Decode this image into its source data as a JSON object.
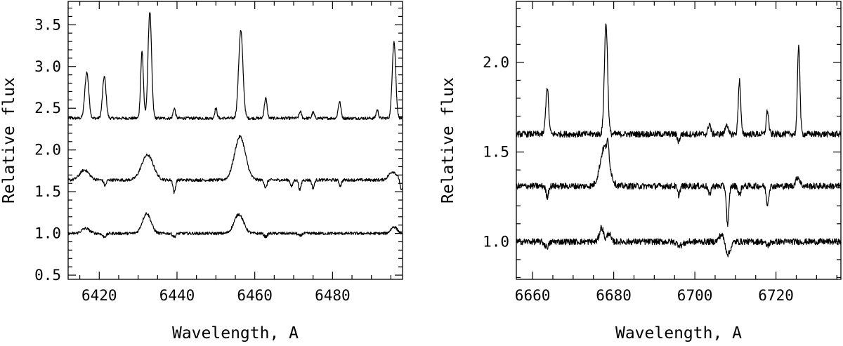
{
  "chart_data": [
    {
      "type": "line",
      "xlabel": "Wavelength, A",
      "ylabel": "Relative flux",
      "xlim": [
        6412,
        6498
      ],
      "ylim": [
        0.45,
        3.78
      ],
      "xticks": [
        6420,
        6440,
        6460,
        6480
      ],
      "yticks": [
        0.5,
        1.0,
        1.5,
        2.0,
        2.5,
        3.0,
        3.5
      ],
      "ytick_labels": [
        "0.5",
        "1.0",
        "1.5",
        "2.0",
        "2.5",
        "3.0",
        "3.5"
      ],
      "grid": false,
      "series": [
        {
          "baseline": 2.38,
          "features": [
            {
              "x": 6416.8,
              "amp": 0.55,
              "w": 0.5
            },
            {
              "x": 6421.3,
              "amp": 0.5,
              "w": 0.45
            },
            {
              "x": 6431.0,
              "amp": 0.8,
              "w": 0.35
            },
            {
              "x": 6433.0,
              "amp": 1.28,
              "w": 0.45
            },
            {
              "x": 6439.3,
              "amp": 0.12,
              "w": 0.3
            },
            {
              "x": 6450.0,
              "amp": 0.12,
              "w": 0.3
            },
            {
              "x": 6456.4,
              "amp": 1.05,
              "w": 0.55
            },
            {
              "x": 6462.8,
              "amp": 0.24,
              "w": 0.35
            },
            {
              "x": 6471.7,
              "amp": 0.08,
              "w": 0.3
            },
            {
              "x": 6475.0,
              "amp": 0.07,
              "w": 0.3
            },
            {
              "x": 6481.8,
              "amp": 0.2,
              "w": 0.35
            },
            {
              "x": 6491.5,
              "amp": 0.1,
              "w": 0.3
            },
            {
              "x": 6495.8,
              "amp": 0.92,
              "w": 0.45
            }
          ]
        },
        {
          "baseline": 1.64,
          "features": [
            {
              "x": 6416.2,
              "amp": 0.12,
              "w": 1.2
            },
            {
              "x": 6421.5,
              "amp": -0.07,
              "w": 0.3
            },
            {
              "x": 6432.4,
              "amp": 0.3,
              "w": 1.5
            },
            {
              "x": 6439.3,
              "amp": -0.15,
              "w": 0.3
            },
            {
              "x": 6456.2,
              "amp": 0.52,
              "w": 1.4
            },
            {
              "x": 6462.8,
              "amp": -0.1,
              "w": 0.3
            },
            {
              "x": 6469.5,
              "amp": -0.08,
              "w": 0.3
            },
            {
              "x": 6471.6,
              "amp": -0.12,
              "w": 0.3
            },
            {
              "x": 6475.0,
              "amp": -0.1,
              "w": 0.3
            },
            {
              "x": 6482.0,
              "amp": -0.07,
              "w": 0.3
            },
            {
              "x": 6495.5,
              "amp": 0.1,
              "w": 1.0
            },
            {
              "x": 6497.7,
              "amp": -0.14,
              "w": 0.3
            }
          ]
        },
        {
          "baseline": 1.0,
          "features": [
            {
              "x": 6416.5,
              "amp": 0.06,
              "w": 1.0
            },
            {
              "x": 6421.3,
              "amp": -0.04,
              "w": 0.5
            },
            {
              "x": 6432.2,
              "amp": 0.24,
              "w": 1.1
            },
            {
              "x": 6439.3,
              "amp": -0.04,
              "w": 0.4
            },
            {
              "x": 6455.9,
              "amp": 0.23,
              "w": 1.2
            },
            {
              "x": 6462.8,
              "amp": -0.04,
              "w": 0.4
            },
            {
              "x": 6471.6,
              "amp": -0.03,
              "w": 0.4
            },
            {
              "x": 6495.8,
              "amp": 0.08,
              "w": 0.8
            }
          ]
        }
      ]
    },
    {
      "type": "line",
      "xlabel": "Wavelength, A",
      "ylabel": "Relative flux",
      "xlim": [
        6656,
        6736
      ],
      "ylim": [
        0.79,
        2.34
      ],
      "xticks": [
        6660,
        6680,
        6700,
        6720
      ],
      "yticks": [
        1.0,
        1.5,
        2.0
      ],
      "ytick_labels": [
        "1.0",
        "1.5",
        "2.0"
      ],
      "grid": false,
      "series": [
        {
          "baseline": 1.6,
          "features": [
            {
              "x": 6663.6,
              "amp": 0.26,
              "w": 0.35
            },
            {
              "x": 6678.1,
              "amp": 0.62,
              "w": 0.4
            },
            {
              "x": 6696.0,
              "amp": -0.04,
              "w": 0.3
            },
            {
              "x": 6703.6,
              "amp": 0.06,
              "w": 0.3
            },
            {
              "x": 6707.8,
              "amp": 0.06,
              "w": 0.3
            },
            {
              "x": 6711.0,
              "amp": 0.3,
              "w": 0.3
            },
            {
              "x": 6717.9,
              "amp": 0.13,
              "w": 0.3
            },
            {
              "x": 6725.6,
              "amp": 0.5,
              "w": 0.3
            }
          ]
        },
        {
          "baseline": 1.31,
          "features": [
            {
              "x": 6663.6,
              "amp": -0.06,
              "w": 0.3
            },
            {
              "x": 6677.8,
              "amp": 0.22,
              "w": 1.1
            },
            {
              "x": 6678.6,
              "amp": 0.08,
              "w": 0.25
            },
            {
              "x": 6696.0,
              "amp": -0.05,
              "w": 0.3
            },
            {
              "x": 6703.6,
              "amp": -0.05,
              "w": 0.3
            },
            {
              "x": 6708.1,
              "amp": -0.22,
              "w": 0.3
            },
            {
              "x": 6711.0,
              "amp": -0.05,
              "w": 0.3
            },
            {
              "x": 6717.9,
              "amp": -0.1,
              "w": 0.3
            },
            {
              "x": 6725.4,
              "amp": 0.05,
              "w": 0.5
            }
          ]
        },
        {
          "baseline": 1.0,
          "features": [
            {
              "x": 6663.5,
              "amp": -0.03,
              "w": 0.5
            },
            {
              "x": 6677.0,
              "amp": 0.08,
              "w": 0.5
            },
            {
              "x": 6678.8,
              "amp": 0.05,
              "w": 0.4
            },
            {
              "x": 6696.5,
              "amp": -0.02,
              "w": 0.8
            },
            {
              "x": 6706.6,
              "amp": 0.04,
              "w": 0.6
            },
            {
              "x": 6708.2,
              "amp": -0.07,
              "w": 0.6
            },
            {
              "x": 6717.9,
              "amp": -0.02,
              "w": 0.5
            }
          ]
        }
      ]
    }
  ]
}
